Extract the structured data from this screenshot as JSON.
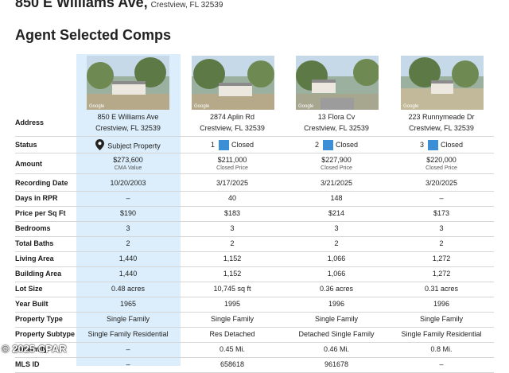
{
  "header": {
    "address": "850 E Williams Ave,",
    "city": "Crestview, FL 32539"
  },
  "section_title": "Agent Selected Comps",
  "photo_watermark": "Google",
  "colors": {
    "subject_highlight": "#dceefb",
    "closed_badge": "#3a8fd6",
    "divider": "#d6d6d6"
  },
  "columns": [
    {
      "line1": "850 E Williams Ave",
      "line2": "Crestview, FL 32539",
      "status_number": "",
      "status_label": "Subject Property",
      "status_icon": "map-pin-icon",
      "amount": "$273,600",
      "amount_sub": "CMA Value"
    },
    {
      "line1": "2874 Aplin Rd",
      "line2": "Crestview, FL 32539",
      "status_number": "1",
      "status_label": "Closed",
      "status_icon": "closed-badge",
      "amount": "$211,000",
      "amount_sub": "Closed Price"
    },
    {
      "line1": "13 Flora Cv",
      "line2": "Crestview, FL 32539",
      "status_number": "2",
      "status_label": "Closed",
      "status_icon": "closed-badge",
      "amount": "$227,900",
      "amount_sub": "Closed Price"
    },
    {
      "line1": "223 Runnymeade Dr",
      "line2": "Crestview, FL 32539",
      "status_number": "3",
      "status_label": "Closed",
      "status_icon": "closed-badge",
      "amount": "$220,000",
      "amount_sub": "Closed Price"
    }
  ],
  "labels": {
    "address": "Address",
    "status": "Status",
    "amount": "Amount",
    "recording_date": "Recording Date",
    "days_in_rpr": "Days in RPR",
    "price_per_sqft": "Price per Sq Ft",
    "bedrooms": "Bedrooms",
    "total_baths": "Total Baths",
    "living_area": "Living Area",
    "building_area": "Building Area",
    "lot_size": "Lot Size",
    "year_built": "Year Built",
    "property_type": "Property Type",
    "property_subtype": "Property Subtype",
    "proximity": "Proximity",
    "mls_id": "MLS ID"
  },
  "rows": {
    "recording_date": [
      "10/20/2003",
      "3/17/2025",
      "3/21/2025",
      "3/20/2025"
    ],
    "days_in_rpr": [
      "–",
      "40",
      "148",
      "–"
    ],
    "price_per_sqft": [
      "$190",
      "$183",
      "$214",
      "$173"
    ],
    "bedrooms": [
      "3",
      "3",
      "3",
      "3"
    ],
    "total_baths": [
      "2",
      "2",
      "2",
      "2"
    ],
    "living_area": [
      "1,440",
      "1,152",
      "1,066",
      "1,272"
    ],
    "building_area": [
      "1,440",
      "1,152",
      "1,066",
      "1,272"
    ],
    "lot_size": [
      "0.48 acres",
      "10,745 sq ft",
      "0.36 acres",
      "0.31 acres"
    ],
    "year_built": [
      "1965",
      "1995",
      "1996",
      "1996"
    ],
    "property_type": [
      "Single Family",
      "Single Family",
      "Single Family",
      "Single Family"
    ],
    "property_subtype": [
      "Single Family Residential",
      "Res Detached",
      "Detached Single Family",
      "Single Family Residential"
    ],
    "proximity": [
      "–",
      "0.45 Mi.",
      "0.46 Mi.",
      "0.8 Mi."
    ],
    "mls_id": [
      "–",
      "658618",
      "961678",
      "–"
    ]
  },
  "copyright": "© 2025 CPAR"
}
